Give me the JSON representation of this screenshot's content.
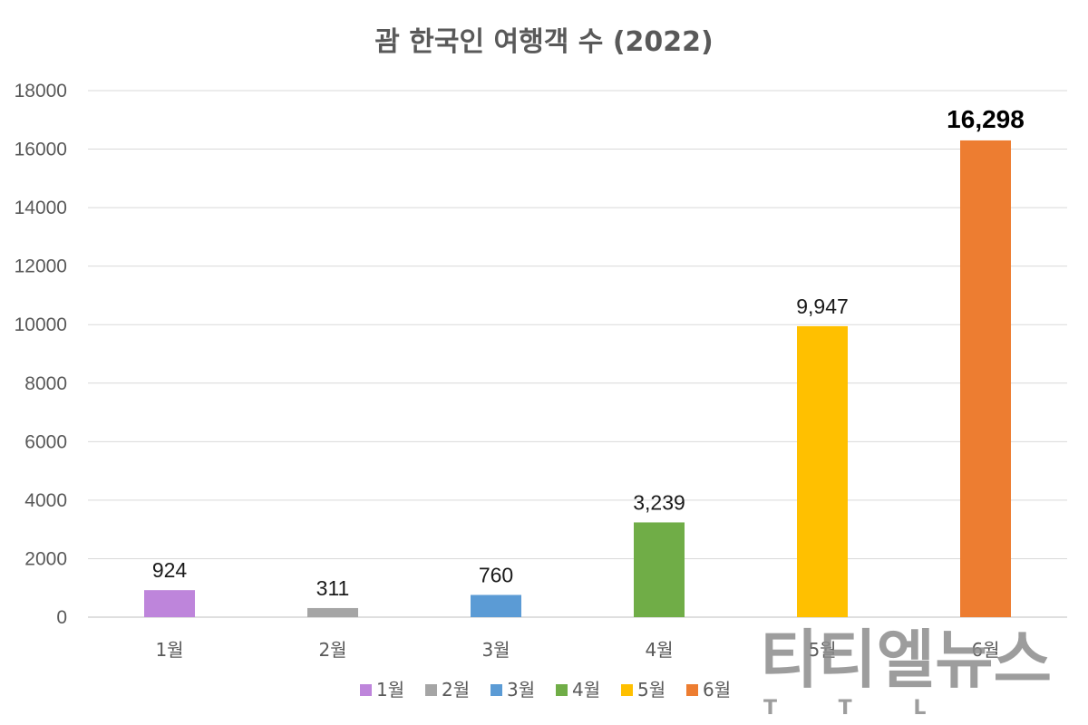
{
  "chart_data": {
    "type": "bar",
    "title": "괌 한국인 여행객 수 (2022)",
    "categories": [
      "1월",
      "2월",
      "3월",
      "4월",
      "5월",
      "6월"
    ],
    "values": [
      924,
      311,
      760,
      3239,
      9947,
      16298
    ],
    "data_labels": [
      "924",
      "311",
      "760",
      "3,239",
      "9,947",
      "16,298"
    ],
    "colors": [
      "#be85db",
      "#a5a5a5",
      "#5b9bd5",
      "#70ad47",
      "#ffc000",
      "#ed7d31"
    ],
    "ylim": [
      0,
      18000
    ],
    "yticks": [
      "0",
      "2000",
      "4000",
      "6000",
      "8000",
      "10000",
      "12000",
      "14000",
      "16000",
      "18000"
    ],
    "grid": true,
    "legend": {
      "position": "bottom",
      "entries": [
        "1월",
        "2월",
        "3월",
        "4월",
        "5월",
        "6월"
      ]
    },
    "xlabel": "",
    "ylabel": ""
  },
  "watermark": {
    "text": "티티엘뉴스",
    "subtext": "T T L"
  }
}
